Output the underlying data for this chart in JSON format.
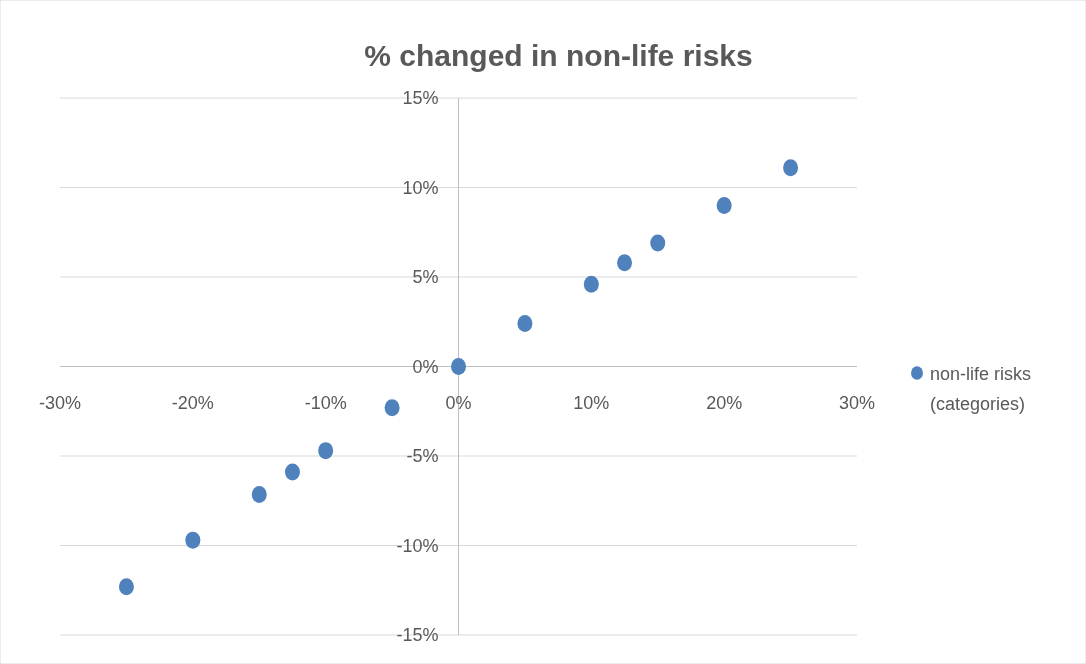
{
  "chart_data": {
    "type": "scatter",
    "title": "% changed in non-life risks",
    "x": [
      -25,
      -20,
      -15,
      -12.5,
      -10,
      -5,
      0,
      5,
      10,
      12.5,
      15,
      20,
      25
    ],
    "series": [
      {
        "name": "non-life risks (categories)",
        "color": "#4f81bd",
        "values": [
          -12.3,
          -9.7,
          -7.15,
          -5.9,
          -4.7,
          -2.3,
          0,
          2.4,
          4.6,
          5.8,
          6.9,
          9.0,
          11.1
        ]
      }
    ],
    "xlim": [
      -30,
      30
    ],
    "ylim": [
      -15,
      15
    ],
    "xticks": [
      {
        "value": -30,
        "label": "-30%"
      },
      {
        "value": -20,
        "label": "-20%"
      },
      {
        "value": -10,
        "label": "-10%"
      },
      {
        "value": 0,
        "label": "0%"
      },
      {
        "value": 10,
        "label": "10%"
      },
      {
        "value": 20,
        "label": "20%"
      },
      {
        "value": 30,
        "label": "30%"
      }
    ],
    "yticks": [
      {
        "value": -15,
        "label": "-15%"
      },
      {
        "value": -10,
        "label": "-10%"
      },
      {
        "value": -5,
        "label": "-5%"
      },
      {
        "value": 0,
        "label": "0%"
      },
      {
        "value": 5,
        "label": "5%"
      },
      {
        "value": 10,
        "label": "10%"
      },
      {
        "value": 15,
        "label": "15%"
      }
    ],
    "grid": "y",
    "legend": "right",
    "marker": "circle"
  }
}
